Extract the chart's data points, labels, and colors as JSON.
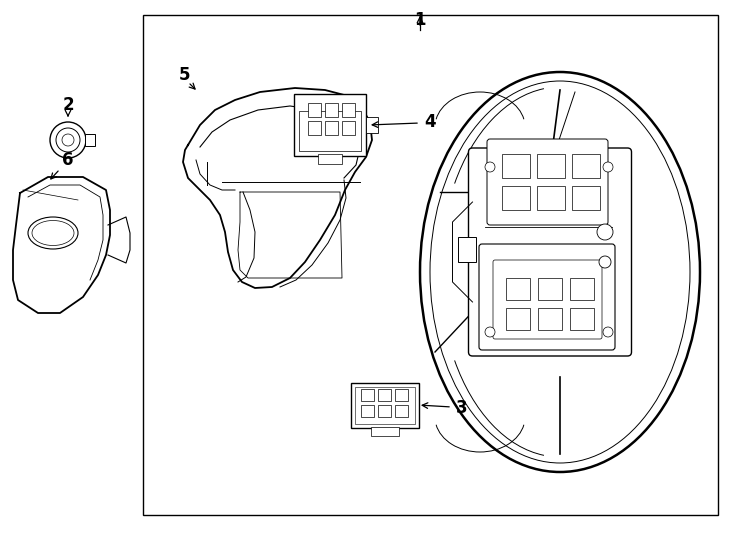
{
  "background_color": "#ffffff",
  "line_color": "#000000",
  "figsize": [
    7.34,
    5.4
  ],
  "dpi": 100,
  "label_fontsize": 12,
  "label_fontweight": "bold"
}
